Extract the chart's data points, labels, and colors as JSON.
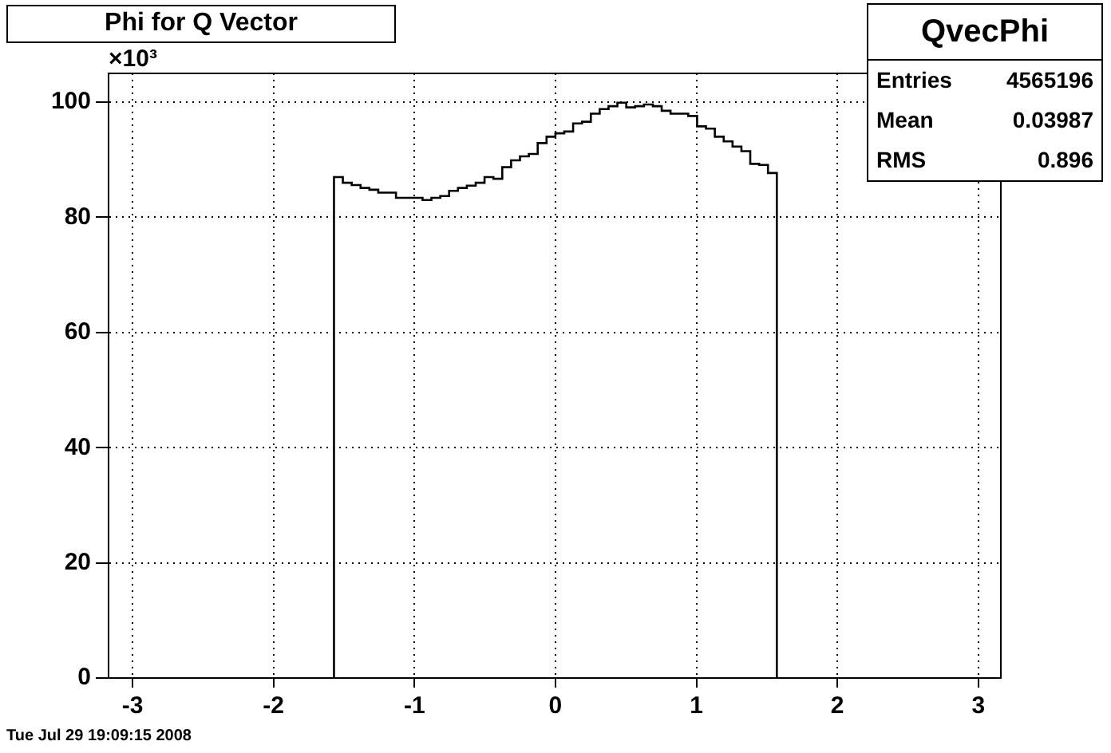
{
  "chart_data": {
    "type": "histogram",
    "title": "Phi for Q Vector",
    "ylabel": "×10³",
    "color": "#000000",
    "bins": [
      -1.5708,
      -1.508,
      -1.4451,
      -1.3823,
      -1.3195,
      -1.2566,
      -1.1938,
      -1.131,
      -1.0681,
      -1.0053,
      -0.9425,
      -0.8796,
      -0.8168,
      -0.754,
      -0.6912,
      -0.6283,
      -0.5655,
      -0.5027,
      -0.4398,
      -0.377,
      -0.3142,
      -0.2513,
      -0.1885,
      -0.1257,
      -0.0628,
      0,
      0.0628,
      0.1257,
      0.1885,
      0.2513,
      0.3142,
      0.377,
      0.4398,
      0.5027,
      0.5655,
      0.6283,
      0.6912,
      0.754,
      0.8168,
      0.8796,
      0.9425,
      1.0053,
      1.0681,
      1.131,
      1.1938,
      1.2566,
      1.3195,
      1.3823,
      1.4451,
      1.508,
      1.5708
    ],
    "values": [
      87.0,
      86.0,
      85.6,
      85.1,
      84.8,
      84.3,
      84.3,
      83.4,
      83.4,
      83.4,
      83.0,
      83.4,
      83.7,
      84.6,
      85.1,
      85.5,
      86.0,
      87.0,
      86.7,
      88.7,
      89.9,
      90.6,
      91.0,
      92.9,
      94.0,
      94.6,
      94.9,
      96.3,
      96.6,
      98.0,
      98.8,
      99.3,
      99.9,
      99.1,
      99.3,
      99.6,
      99.3,
      98.5,
      98.0,
      98.0,
      97.6,
      95.8,
      95.4,
      94.0,
      93.2,
      92.3,
      91.5,
      89.3,
      89.1,
      87.7
    ],
    "xlim": [
      -3.17,
      3.16
    ],
    "xticks": [
      -3,
      -2,
      -1,
      0,
      1,
      2,
      3
    ],
    "ylim": [
      0,
      105
    ],
    "yticks": [
      0,
      20,
      40,
      60,
      80,
      100
    ],
    "grid": true,
    "annotations": [
      "QvecPhi",
      "Entries",
      "4565196",
      "Mean",
      "0.03987",
      "RMS",
      "0.896",
      "Tue Jul 29 19:09:15 2008"
    ]
  }
}
